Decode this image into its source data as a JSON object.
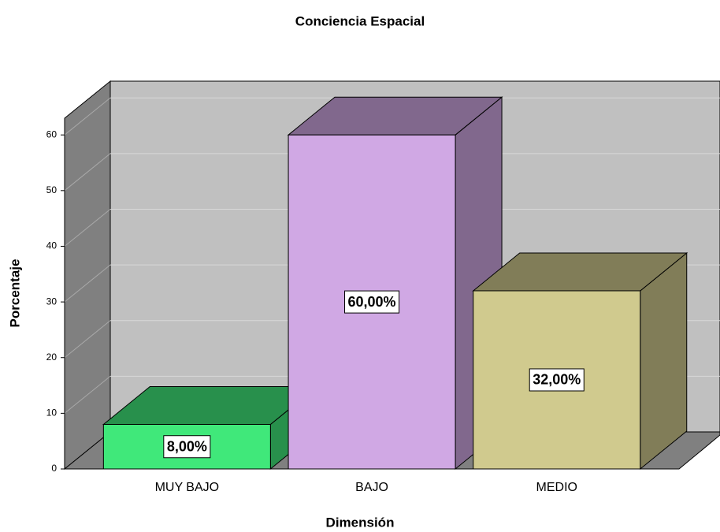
{
  "chart_data": {
    "type": "bar3d",
    "title": "Conciencia Espacial",
    "x_label": "Dimensión",
    "y_label": "Porcentaje",
    "categories": [
      "MUY BAJO",
      "BAJO",
      "MEDIO"
    ],
    "values": [
      8,
      60,
      32
    ],
    "value_labels": [
      "8,00%",
      "60,00%",
      "32,00%"
    ],
    "colors": [
      "#40e87a",
      "#d0a8e4",
      "#d0ca8e"
    ],
    "ylim": [
      0,
      63
    ],
    "yticks": [
      0,
      10,
      20,
      30,
      40,
      50,
      60
    ],
    "grid": true
  }
}
